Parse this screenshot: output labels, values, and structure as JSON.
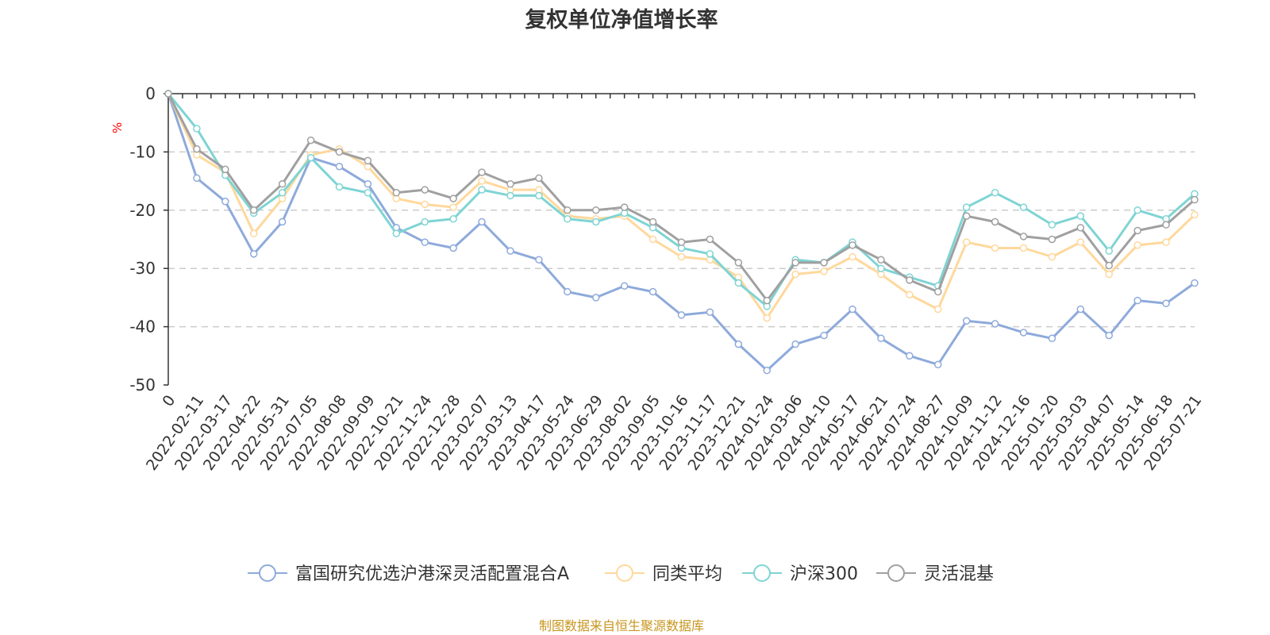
{
  "chart_data": {
    "type": "line",
    "title": "复权单位净值增长率",
    "unit": "%",
    "ylim": [
      -50,
      0
    ],
    "yticks": [
      0,
      -10,
      -20,
      -30,
      -40,
      -50
    ],
    "grid": true,
    "x_tick_labels": [
      "0",
      "2022-02-11",
      "2022-03-17",
      "2022-04-22",
      "2022-05-31",
      "2022-07-05",
      "2022-08-08",
      "2022-09-09",
      "2022-10-21",
      "2022-11-24",
      "2022-12-28",
      "2023-02-07",
      "2023-03-13",
      "2023-04-17",
      "2023-05-24",
      "2023-06-29",
      "2023-08-02",
      "2023-09-05",
      "2023-10-16",
      "2023-11-17",
      "2023-12-21",
      "2024-01-24",
      "2024-03-06",
      "2024-04-10",
      "2024-05-17",
      "2024-06-21",
      "2024-07-24",
      "2024-08-27",
      "2024-10-09",
      "2024-11-12",
      "2024-12-16",
      "2025-01-20",
      "2025-03-03",
      "2025-04-07",
      "2025-05-14",
      "2025-06-18",
      "2025-07-21"
    ],
    "x": [
      "0",
      "2022-02-11",
      "2022-03-17",
      "2022-04-22",
      "2022-05-31",
      "2022-07-05",
      "2022-08-08",
      "2022-09-09",
      "2022-10-21",
      "2022-11-24",
      "2022-12-28",
      "2023-02-07",
      "2023-03-13",
      "2023-04-17",
      "2023-05-24",
      "2023-06-29",
      "2023-08-02",
      "2023-09-05",
      "2023-10-16",
      "2023-11-17",
      "2023-12-21",
      "2024-01-24",
      "2024-03-06",
      "2024-04-10",
      "2024-05-17",
      "2024-06-21",
      "2024-07-24",
      "2024-08-27",
      "2024-10-09",
      "2024-11-12",
      "2024-12-16",
      "2025-01-20",
      "2025-03-03",
      "2025-04-07",
      "2025-05-14",
      "2025-06-18",
      "2025-07-21"
    ],
    "series": [
      {
        "name": "富国研究优选沪港深灵活配置混合A",
        "color": "#8eaadb",
        "values": [
          0,
          -14.5,
          -18.5,
          -27.5,
          -22.0,
          -11.0,
          -12.5,
          -15.5,
          -23.0,
          -25.5,
          -26.5,
          -22.0,
          -27.0,
          -28.5,
          -34.0,
          -35.0,
          -33.0,
          -34.0,
          -38.0,
          -37.5,
          -43.0,
          -47.5,
          -43.0,
          -41.5,
          -37.0,
          -42.0,
          -45.0,
          -46.5,
          -39.0,
          -39.5,
          -41.0,
          -42.0,
          -37.0,
          -41.5,
          -35.5,
          -36.0,
          -32.5
        ]
      },
      {
        "name": "同类平均",
        "color": "#ffd89c",
        "values": [
          0,
          -10.5,
          -13.5,
          -24.0,
          -18.0,
          -10.5,
          -9.5,
          -12.5,
          -18.0,
          -19.0,
          -19.5,
          -15.0,
          -16.5,
          -16.5,
          -21.0,
          -21.5,
          -21.0,
          -25.0,
          -28.0,
          -28.5,
          -31.5,
          -38.5,
          -31.0,
          -30.5,
          -28.0,
          -31.0,
          -34.5,
          -37.0,
          -25.5,
          -26.5,
          -26.5,
          -28.0,
          -25.5,
          -31.0,
          -26.0,
          -25.5,
          -20.8
        ]
      },
      {
        "name": "沪深300",
        "color": "#7fd4d4",
        "values": [
          0,
          -6.0,
          -14.0,
          -20.5,
          -17.0,
          -11.0,
          -16.0,
          -17.0,
          -24.0,
          -22.0,
          -21.5,
          -16.5,
          -17.5,
          -17.5,
          -21.5,
          -22.0,
          -20.5,
          -23.0,
          -26.5,
          -27.5,
          -32.5,
          -36.5,
          -28.5,
          -29.0,
          -25.5,
          -30.0,
          -31.5,
          -33.0,
          -19.5,
          -17.0,
          -19.5,
          -22.5,
          -21.0,
          -27.0,
          -20.0,
          -21.5,
          -17.2
        ]
      },
      {
        "name": "灵活混基",
        "color": "#a0a0a0",
        "values": [
          0,
          -9.5,
          -13.0,
          -20.0,
          -15.5,
          -8.0,
          -10.0,
          -11.5,
          -17.0,
          -16.5,
          -18.0,
          -13.5,
          -15.5,
          -14.5,
          -20.0,
          -20.0,
          -19.5,
          -22.0,
          -25.5,
          -25.0,
          -29.0,
          -35.5,
          -29.0,
          -29.0,
          -26.0,
          -28.5,
          -32.0,
          -34.0,
          -21.0,
          -22.0,
          -24.5,
          -25.0,
          -23.0,
          -29.5,
          -23.5,
          -22.5,
          -18.2
        ]
      }
    ],
    "legend_position": "bottom",
    "source_note": "制图数据来自恒生聚源数据库"
  }
}
